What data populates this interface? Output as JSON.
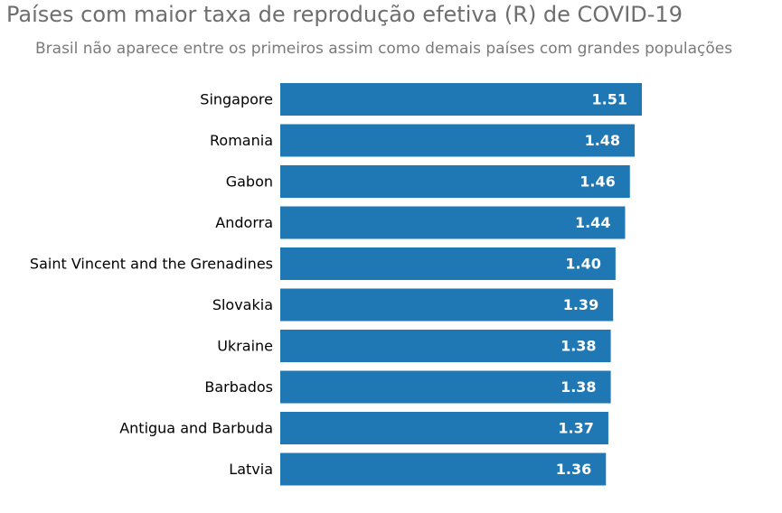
{
  "chart_data": {
    "type": "bar",
    "orientation": "horizontal",
    "title": "Países com maior taxa de reprodução efetiva (R) de COVID-19",
    "subtitle": "Brasil não aparece entre os primeiros assim como demais países com grandes populações",
    "categories": [
      "Singapore",
      "Romania",
      "Gabon",
      "Andorra",
      "Saint Vincent and the Grenadines",
      "Slovakia",
      "Ukraine",
      "Barbados",
      "Antigua and Barbuda",
      "Latvia"
    ],
    "values": [
      1.51,
      1.48,
      1.46,
      1.44,
      1.4,
      1.39,
      1.38,
      1.38,
      1.37,
      1.36
    ],
    "value_labels": [
      "1.51",
      "1.48",
      "1.46",
      "1.44",
      "1.40",
      "1.39",
      "1.38",
      "1.38",
      "1.37",
      "1.36"
    ],
    "xlim": [
      0,
      1.51
    ],
    "grid": false,
    "bar_color": "#1f77b4",
    "label_color": "#ffffff"
  }
}
